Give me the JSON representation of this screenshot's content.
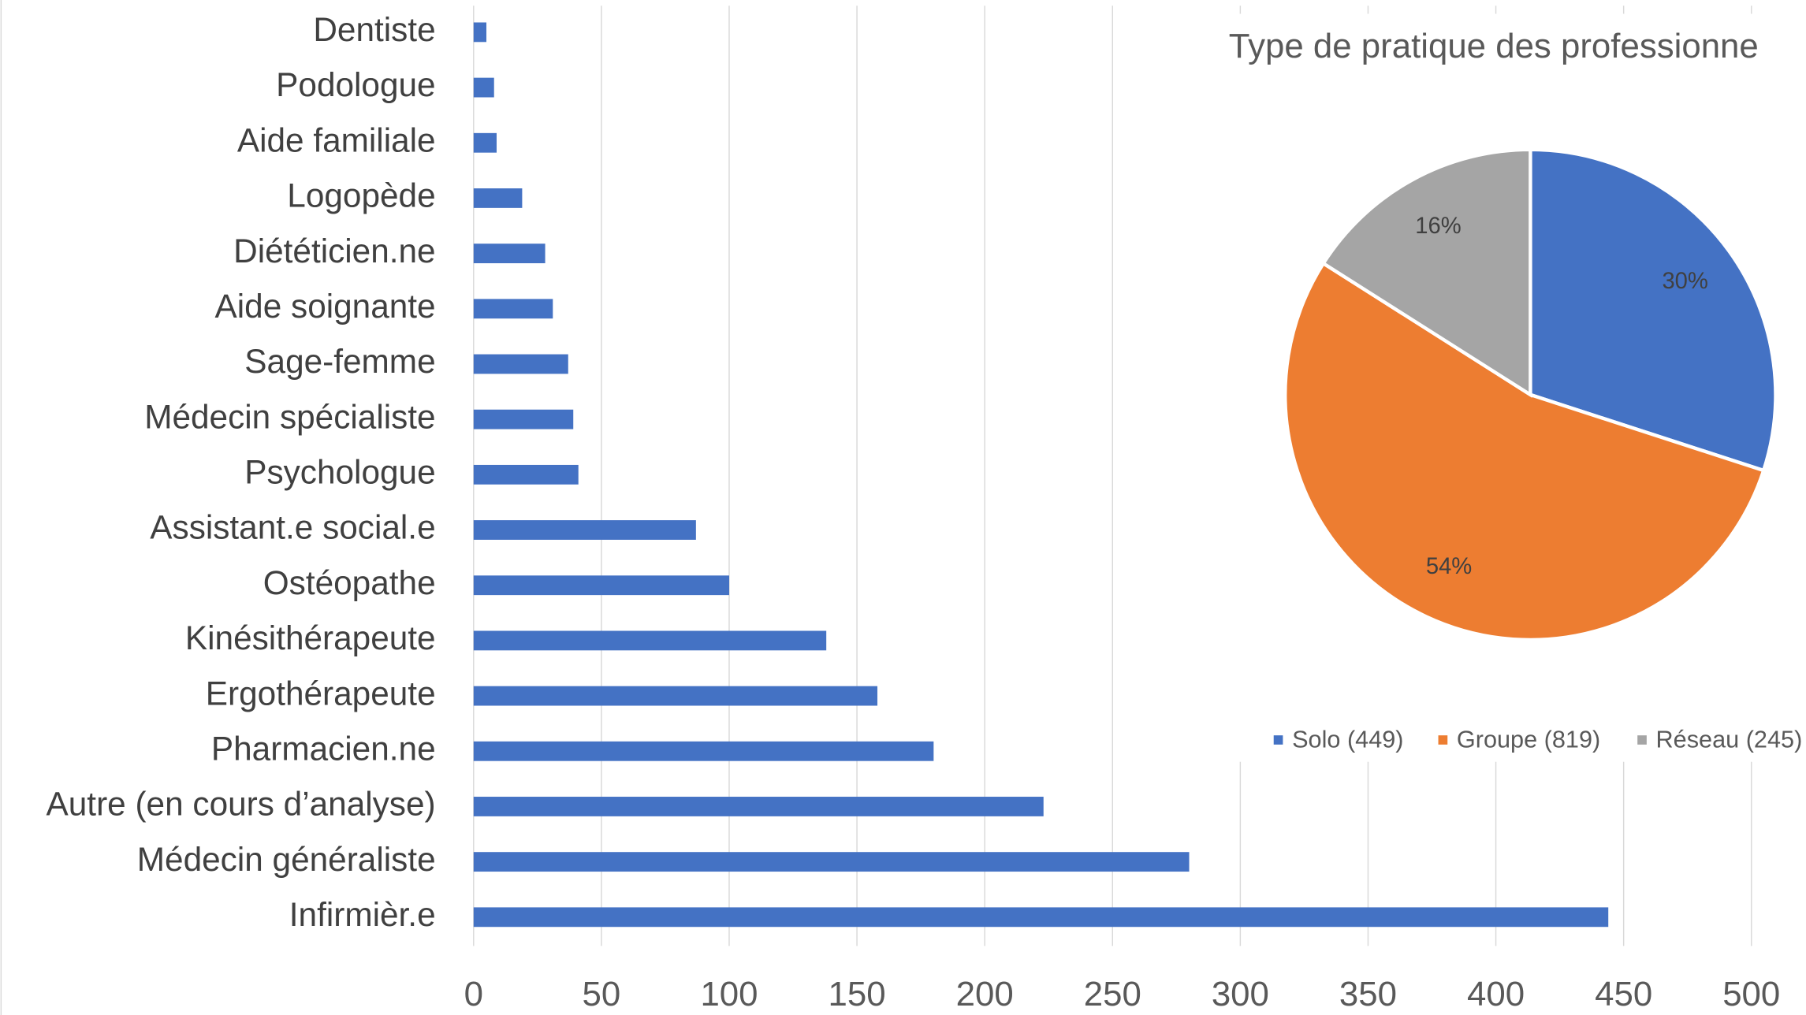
{
  "chart_data": [
    {
      "type": "hbar",
      "categories": [
        "Dentiste",
        "Podologue",
        "Aide familiale",
        "Logopède",
        "Diététicien.ne",
        "Aide soignante",
        "Sage-femme",
        "Médecin spécialiste",
        "Psychologue",
        "Assistant.e social.e",
        "Ostéopathe",
        "Kinésithérapeute",
        "Ergothérapeute",
        "Pharmacien.ne",
        "Autre (en cours d’analyse)",
        "Médecin généraliste",
        "Infirmièr.e"
      ],
      "values": [
        5,
        8,
        9,
        19,
        28,
        31,
        37,
        39,
        41,
        87,
        100,
        138,
        158,
        180,
        223,
        280,
        444
      ],
      "color": "#4472c4",
      "xlim": [
        0,
        500
      ],
      "xticks": [
        0,
        50,
        100,
        150,
        200,
        250,
        300,
        350,
        400,
        450,
        500
      ],
      "grid": true
    },
    {
      "type": "pie",
      "title": "Type de pratique des professionne",
      "categories": [
        "Solo (449)",
        "Groupe (819)",
        "Réseau (245)"
      ],
      "values": [
        30,
        54,
        16
      ],
      "value_labels": [
        "30%",
        "54%",
        "16%"
      ],
      "colors": [
        "#4472c4",
        "#ed7d31",
        "#a5a5a5"
      ],
      "legend": "bottom"
    }
  ]
}
